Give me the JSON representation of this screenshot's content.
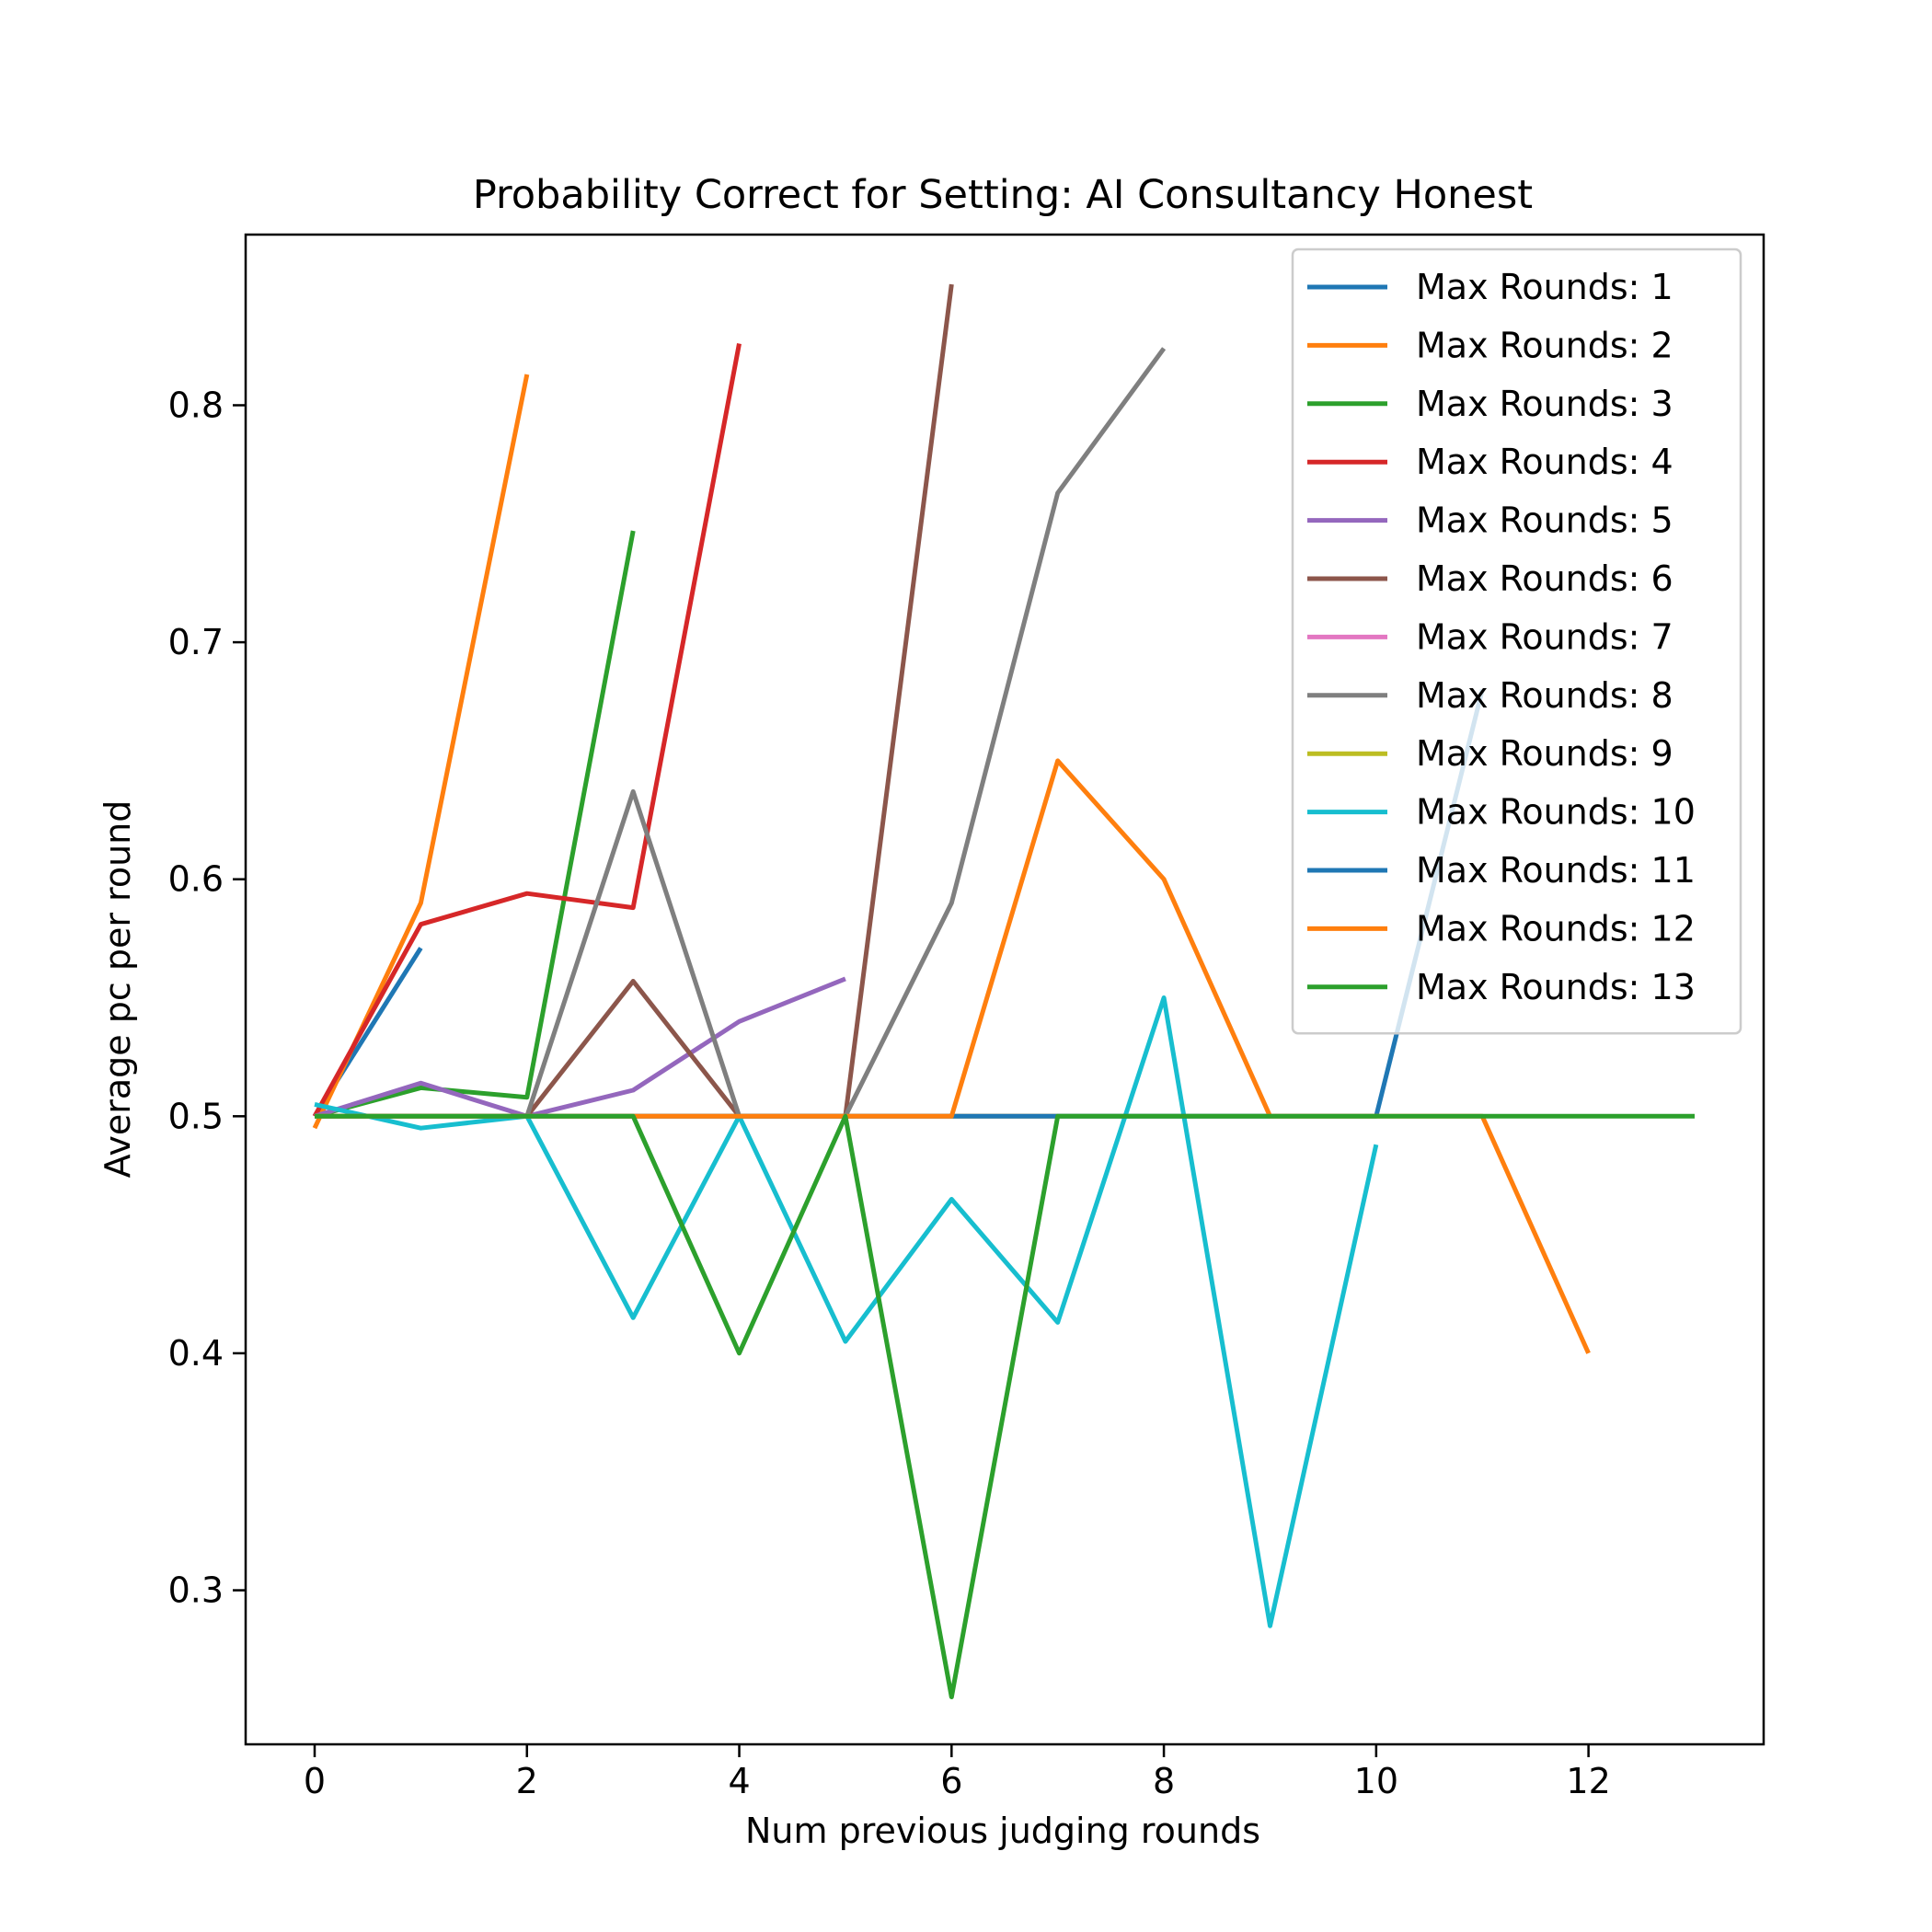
{
  "chart_data": {
    "type": "line",
    "title": "Probability Correct for Setting: AI Consultancy Honest",
    "xlabel": "Num previous judging rounds",
    "ylabel": "Average pc per round",
    "xlim": [
      -0.65,
      13.65
    ],
    "ylim": [
      0.235,
      0.872
    ],
    "xticks": [
      0,
      2,
      4,
      6,
      8,
      10,
      12
    ],
    "xtick_labels": [
      "0",
      "2",
      "4",
      "6",
      "8",
      "10",
      "12"
    ],
    "yticks": [
      0.3,
      0.4,
      0.5,
      0.6,
      0.7,
      0.8
    ],
    "ytick_labels": [
      "0.3",
      "0.4",
      "0.5",
      "0.6",
      "0.7",
      "0.8"
    ],
    "grid": false,
    "legend_position": "top-right",
    "series": [
      {
        "name": "Max Rounds: 1",
        "color": "#1f77b4",
        "x": [
          0,
          1
        ],
        "y": [
          0.5,
          0.571
        ]
      },
      {
        "name": "Max Rounds: 2",
        "color": "#ff7f0e",
        "x": [
          0,
          1,
          2
        ],
        "y": [
          0.495,
          0.59,
          0.813
        ]
      },
      {
        "name": "Max Rounds: 3",
        "color": "#2ca02c",
        "x": [
          0,
          1,
          2,
          3
        ],
        "y": [
          0.5,
          0.512,
          0.508,
          0.747
        ]
      },
      {
        "name": "Max Rounds: 4",
        "color": "#d62728",
        "x": [
          0,
          1,
          2,
          3,
          4
        ],
        "y": [
          0.5,
          0.581,
          0.594,
          0.588,
          0.826
        ]
      },
      {
        "name": "Max Rounds: 5",
        "color": "#9467bd",
        "x": [
          0,
          1,
          2,
          3,
          4,
          5
        ],
        "y": [
          0.5,
          0.514,
          0.5,
          0.511,
          0.54,
          0.558
        ]
      },
      {
        "name": "Max Rounds: 6",
        "color": "#8c564b",
        "x": [
          0,
          1,
          2,
          3,
          4,
          5,
          6
        ],
        "y": [
          0.5,
          0.5,
          0.5,
          0.557,
          0.5,
          0.5,
          0.851
        ]
      },
      {
        "name": "Max Rounds: 7",
        "color": "#e377c2",
        "x": [
          0,
          1,
          2,
          3,
          4,
          5,
          6,
          7
        ],
        "y": [
          0.5,
          0.5,
          0.5,
          0.5,
          0.5,
          0.5,
          0.5,
          0.5
        ]
      },
      {
        "name": "Max Rounds: 8",
        "color": "#7f7f7f",
        "x": [
          0,
          1,
          2,
          3,
          4,
          5,
          6,
          7,
          8
        ],
        "y": [
          0.5,
          0.5,
          0.5,
          0.637,
          0.5,
          0.5,
          0.59,
          0.763,
          0.824
        ]
      },
      {
        "name": "Max Rounds: 9",
        "color": "#bcbd22",
        "x": [
          0,
          1,
          2,
          3,
          4,
          5,
          6,
          7,
          8,
          9
        ],
        "y": [
          0.5,
          0.5,
          0.5,
          0.5,
          0.5,
          0.5,
          0.5,
          0.5,
          0.5,
          0.5
        ]
      },
      {
        "name": "Max Rounds: 10",
        "color": "#17becf",
        "x": [
          0,
          1,
          2,
          3,
          4,
          5,
          6,
          7,
          8,
          9,
          10
        ],
        "y": [
          0.505,
          0.495,
          0.5,
          0.415,
          0.5,
          0.405,
          0.465,
          0.413,
          0.55,
          0.285,
          0.488
        ]
      },
      {
        "name": "Max Rounds: 11",
        "color": "#1f77b4",
        "x": [
          0,
          1,
          2,
          3,
          4,
          5,
          6,
          7,
          8,
          9,
          10,
          11
        ],
        "y": [
          0.5,
          0.5,
          0.5,
          0.5,
          0.5,
          0.5,
          0.5,
          0.5,
          0.5,
          0.5,
          0.5,
          0.68
        ]
      },
      {
        "name": "Max Rounds: 12",
        "color": "#ff7f0e",
        "x": [
          0,
          1,
          2,
          3,
          4,
          5,
          6,
          7,
          8,
          9,
          10,
          11,
          12
        ],
        "y": [
          0.5,
          0.5,
          0.5,
          0.5,
          0.5,
          0.5,
          0.5,
          0.65,
          0.6,
          0.5,
          0.5,
          0.5,
          0.4
        ]
      },
      {
        "name": "Max Rounds: 13",
        "color": "#2ca02c",
        "x": [
          0,
          1,
          2,
          3,
          4,
          5,
          6,
          7,
          8,
          9,
          10,
          11,
          12,
          13
        ],
        "y": [
          0.5,
          0.5,
          0.5,
          0.5,
          0.4,
          0.5,
          0.255,
          0.5,
          0.5,
          0.5,
          0.5,
          0.5,
          0.5,
          0.5
        ]
      }
    ]
  }
}
